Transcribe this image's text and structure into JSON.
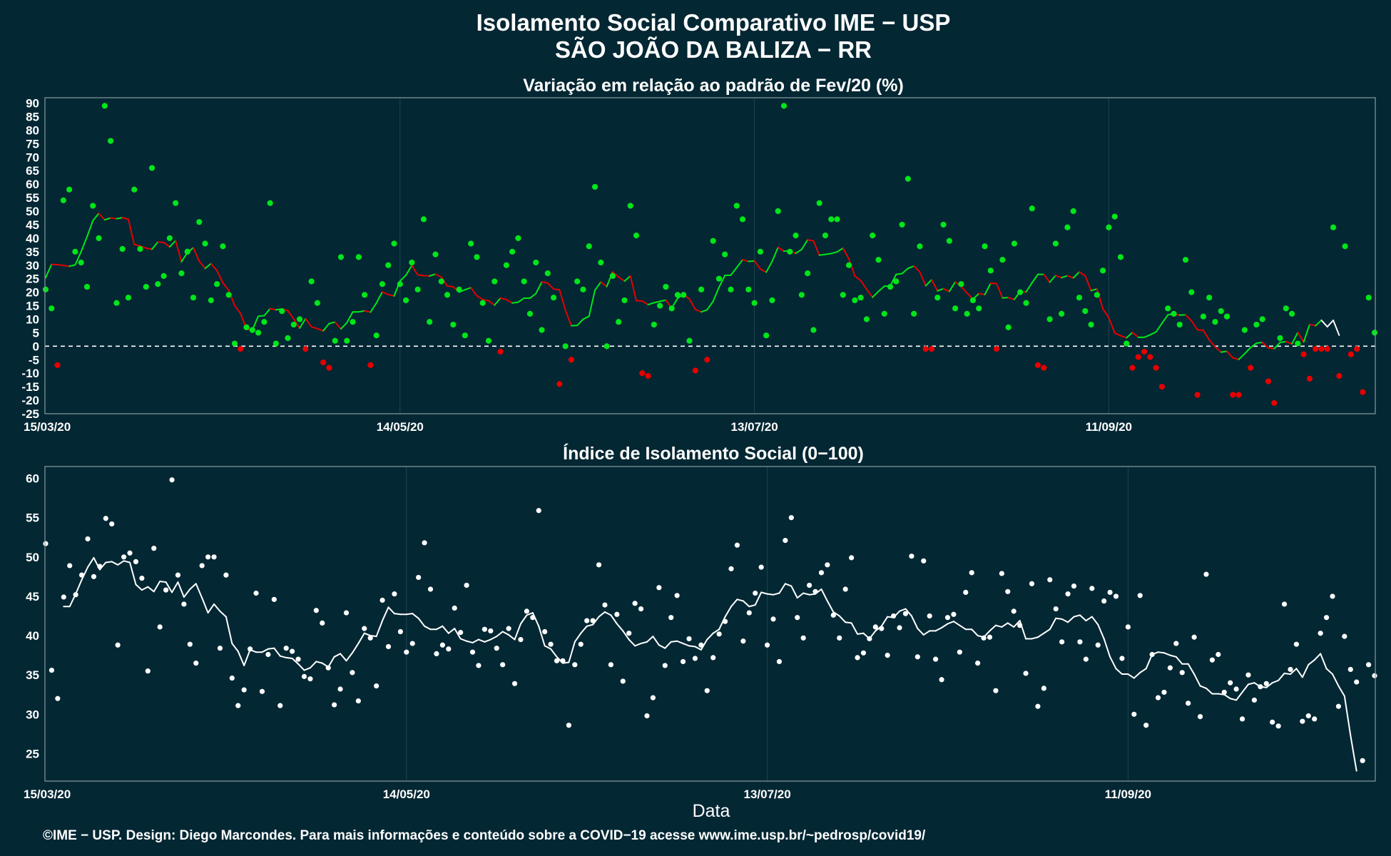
{
  "title_line1": "Isolamento Social Comparativo IME − USP",
  "title_line2": "SÃO JOÃO DA BALIZA − RR",
  "xlabel": "Data",
  "footer": "©IME − USP. Design: Diego Marcondes. Para mais informações e conteúdo sobre a COVID−19 acesse www.ime.usp.br/~pedrosp/covid19/",
  "colors": {
    "background": "#032733",
    "positive": "#00e61a",
    "negative": "#e60000",
    "index": "#ffffff"
  },
  "chart_data": [
    {
      "type": "scatter",
      "title": "Variação em relação ao padrão de Fev/20 (%)",
      "xlabel": "",
      "ylabel": "",
      "x_start": "2020-03-15",
      "x_end": "2020-10-31",
      "x_ticks": [
        "15/03/20",
        "14/05/20",
        "13/07/20",
        "11/09/20"
      ],
      "ylim": [
        -25,
        92
      ],
      "y_ticks": [
        -25,
        -20,
        -15,
        -10,
        -5,
        0,
        5,
        10,
        15,
        20,
        25,
        30,
        35,
        40,
        45,
        50,
        55,
        60,
        65,
        70,
        75,
        80,
        85,
        90
      ],
      "reference_line": 0,
      "grid": true,
      "legend": "none",
      "series": [
        {
          "role": "daily_points",
          "values": [
            21,
            14,
            -7,
            54,
            58,
            35,
            31,
            22,
            52,
            40,
            89,
            76,
            16,
            36,
            18,
            58,
            36,
            22,
            66,
            23,
            26,
            40,
            53,
            27,
            35,
            18,
            46,
            38,
            17,
            23,
            37,
            19,
            1,
            -1,
            7,
            6,
            5,
            9,
            53,
            1,
            13,
            3,
            8,
            10,
            -1,
            24,
            16,
            -6,
            -8,
            2,
            33,
            2,
            9,
            33,
            19,
            -7,
            4,
            23,
            30,
            38,
            23,
            17,
            31,
            21,
            47,
            9,
            34,
            24,
            19,
            8,
            21,
            4,
            38,
            33,
            16,
            2,
            24,
            -2,
            30,
            35,
            40,
            24,
            12,
            31,
            6,
            27,
            18,
            -14,
            0,
            -5,
            24,
            21,
            37,
            59,
            31,
            0,
            26,
            9,
            17,
            52,
            41,
            -10,
            -11,
            8,
            15,
            22,
            14,
            19,
            19,
            2,
            -9,
            21,
            -5,
            39,
            25,
            34,
            21,
            52,
            47,
            21,
            16,
            35,
            4,
            17,
            50,
            89,
            35,
            41,
            19,
            27,
            6,
            53,
            41,
            47,
            47,
            19,
            30,
            17,
            18,
            10,
            41,
            32,
            12,
            22,
            24,
            45,
            62,
            12,
            37,
            -1,
            -1,
            18,
            45,
            39,
            14,
            23,
            12,
            17,
            14,
            37,
            28,
            -1,
            32,
            7,
            38,
            20,
            16,
            51,
            -7,
            -8,
            10,
            38,
            12,
            44,
            50,
            18,
            13,
            8,
            19,
            28,
            44,
            48,
            33,
            1,
            -8,
            -4,
            -2,
            -4,
            -8,
            -15,
            14,
            12,
            8,
            32,
            20,
            -18,
            11,
            18,
            9,
            13,
            11,
            -18,
            -18,
            6,
            -8,
            8,
            10,
            -13,
            -21,
            3,
            14,
            12,
            1,
            -3,
            -12,
            -1,
            -1,
            -1,
            44,
            -11,
            37,
            -3,
            -1,
            -17,
            18,
            5
          ]
        },
        {
          "role": "moving_average",
          "values": [
            25.4,
            30.3,
            30.2,
            29.9,
            29.6,
            30.1,
            35,
            40.5,
            46.5,
            49.2,
            46.8,
            47.5,
            47.2,
            47.6,
            47,
            37.7,
            37.1,
            36.3,
            35.9,
            38.6,
            38.4,
            36.8,
            39.1,
            31.3,
            34.6,
            36.5,
            31.5,
            28.8,
            30.6,
            28,
            23.5,
            20.7,
            15.1,
            12.1,
            6.3,
            6,
            11.1,
            11.3,
            13.9,
            13.5,
            13.8,
            13.2,
            10.1,
            6.7,
            10.2,
            7.2,
            6.5,
            5.7,
            8.4,
            8.9,
            6.4,
            8.7,
            12.7,
            12.7,
            13.1,
            12.6,
            16,
            20.1,
            19.1,
            18.6,
            24.1,
            26.3,
            29.9,
            26.4,
            26.1,
            26,
            26.7,
            25.6,
            22.3,
            22,
            20,
            20.9,
            21.7,
            18.7,
            17.3,
            16.8,
            15.2,
            17.8,
            17.3,
            16,
            16.3,
            17.8,
            17.8,
            19.5,
            23.8,
            23.4,
            21.2,
            20.9,
            13.4,
            7.6,
            7.7,
            10,
            11.1,
            20.7,
            23.8,
            22.1,
            27.5,
            25.6,
            24.1,
            26,
            16.9,
            16.7,
            15.4,
            16.1,
            16.6,
            17.1,
            14.1,
            17.8,
            19.1,
            17.5,
            13.6,
            12.7,
            13.5,
            16.6,
            21.8,
            26.2,
            26.3,
            29.1,
            32,
            31.4,
            31.6,
            28.6,
            27.4,
            31.4,
            36.6,
            35.2,
            35.3,
            34.4,
            35.8,
            39.4,
            39,
            33.7,
            34,
            34.3,
            34.9,
            36.3,
            32.3,
            26,
            24.3,
            21.1,
            18.1,
            20.3,
            22.2,
            22.3,
            26.6,
            26.9,
            28.8,
            29.7,
            27.5,
            22.4,
            24.6,
            20.5,
            21.3,
            20.3,
            23.8,
            22.1,
            19.7,
            17.4,
            19.5,
            19.1,
            23.3,
            23.2,
            17.9,
            18,
            17.3,
            20.3,
            20.1,
            23.5,
            26.6,
            26.6,
            23.7,
            26.2,
            25.4,
            26.1,
            25.3,
            27.5,
            26.1,
            20.6,
            21.2,
            13.8,
            10.6,
            4.9,
            3.9,
            3.1,
            5.1,
            3.3,
            3.3,
            4.2,
            5.3,
            8.5,
            11.6,
            12,
            11.5,
            11.6,
            9.4,
            6.1,
            5.9,
            2.4,
            -0.2,
            -2.2,
            -1.9,
            -4.3,
            -4.9,
            -2.8,
            -0.5,
            1.1,
            1.4,
            -0.6,
            -0.9,
            1.4,
            1.7,
            0.9,
            5.1,
            1.6,
            8.1,
            7.6,
            9.6,
            7.2,
            9.6,
            4.1
          ]
        }
      ]
    },
    {
      "type": "scatter",
      "title": "Índice de Isolamento Social (0−100)",
      "xlabel": "Data",
      "ylabel": "",
      "x_start": "2020-03-15",
      "x_end": "2020-10-31",
      "x_ticks": [
        "15/03/20",
        "14/05/20",
        "13/07/20",
        "11/09/20"
      ],
      "ylim": [
        21.5,
        61.5
      ],
      "y_ticks": [
        25,
        30,
        35,
        40,
        45,
        50,
        55,
        60
      ],
      "grid": true,
      "legend": "none",
      "series": [
        {
          "role": "daily_points",
          "values": [
            51.7,
            35.6,
            32,
            44.9,
            48.9,
            45.2,
            47.7,
            52.3,
            47.5,
            48.8,
            54.9,
            54.2,
            38.8,
            50,
            50.5,
            49.4,
            47.3,
            35.5,
            51.1,
            41.1,
            45.8,
            59.8,
            47.7,
            44,
            38.9,
            36.5,
            48.9,
            50,
            50,
            38.4,
            47.7,
            34.6,
            31.1,
            33.1,
            38.3,
            45.4,
            32.9,
            37.6,
            44.6,
            31.1,
            38.4,
            38,
            37,
            34.8,
            34.5,
            43.2,
            41.6,
            35.9,
            31.2,
            33.2,
            42.9,
            35.3,
            31.7,
            40.9,
            39.7,
            33.6,
            44.5,
            38.6,
            45.3,
            40.5,
            37.9,
            39,
            47.4,
            51.8,
            45.9,
            37.7,
            38.8,
            38.3,
            43.5,
            40.4,
            46.4,
            37.9,
            36.2,
            40.8,
            40.6,
            38.4,
            36.3,
            40.9,
            33.9,
            39.5,
            43.1,
            42.3,
            55.9,
            40.5,
            38.9,
            36.8,
            36.8,
            28.6,
            36.3,
            38.9,
            41.9,
            41.9,
            49,
            43.9,
            36.3,
            42.7,
            34.2,
            40.3,
            44.1,
            43.4,
            29.8,
            32.1,
            46.1,
            36.2,
            42.3,
            45.1,
            36.7,
            39.6,
            37.1,
            38.8,
            33,
            37.2,
            40.2,
            41.8,
            48.5,
            51.5,
            39.3,
            42.9,
            45.4,
            48.7,
            38.8,
            42.1,
            36.7,
            52.1,
            55,
            42.3,
            39.7,
            46.4,
            45.6,
            48,
            49,
            42.6,
            39.7,
            45.9,
            49.9,
            37.2,
            37.8,
            39.6,
            41.1,
            40.9,
            37.5,
            42.5,
            41,
            42.8,
            50.1,
            37.3,
            49.5,
            42.5,
            37,
            34.4,
            42.3,
            42.7,
            37.9,
            45.5,
            48,
            36.5,
            39.7,
            39.8,
            33,
            47.9,
            45.6,
            43.1,
            41.3,
            35.2,
            46.6,
            31,
            33.3,
            47.1,
            43.4,
            39.2,
            45.3,
            46.3,
            39.2,
            37,
            46,
            38.8,
            44.4,
            45.5,
            45,
            37.1,
            41.1,
            30,
            45.1,
            28.6,
            37.6,
            32.1,
            32.8,
            35.9,
            39,
            35.3,
            31.4,
            39.8,
            29.7,
            47.8,
            36.9,
            37.6,
            32.8,
            34,
            33.2,
            29.4,
            35,
            31.8,
            33.5,
            33.9,
            29,
            28.5,
            44,
            35.7,
            38.9,
            29.1,
            29.8,
            29.4,
            40.3,
            42.3,
            45,
            31,
            39.9,
            35.7,
            34.1,
            24.1,
            36.3,
            34.9
          ]
        },
        {
          "role": "moving_average",
          "values": [
            null,
            null,
            null,
            43.7,
            43.7,
            45.3,
            47.1,
            48.7,
            49.9,
            48.4,
            49.3,
            49.4,
            49,
            49.5,
            49.3,
            46.5,
            45.8,
            46.2,
            45.6,
            46.9,
            46.8,
            45.5,
            46.8,
            44.9,
            45.9,
            46.6,
            44.8,
            42.9,
            44,
            43.1,
            42.4,
            39,
            38,
            36.2,
            38.2,
            37.9,
            37.9,
            38.3,
            38.4,
            37.4,
            37.2,
            37.1,
            36.4,
            35.6,
            35.9,
            36.7,
            36.5,
            36,
            37.3,
            37.7,
            36.8,
            37.8,
            39,
            40.3,
            40,
            39.9,
            41.9,
            43.6,
            42.8,
            42.7,
            42.7,
            42.8,
            42.2,
            41.2,
            40.8,
            40.8,
            41.2,
            40.3,
            40.9,
            39.6,
            39.3,
            39.1,
            39.5,
            39.2,
            39.5,
            39.9,
            40.5,
            40.1,
            39.5,
            41.5,
            42.6,
            42.9,
            41.2,
            38.7,
            38.3,
            37.3,
            36.5,
            36.6,
            39.2,
            40.3,
            41.2,
            41.4,
            42.4,
            43,
            42.6,
            41.5,
            40.6,
            39.5,
            38.7,
            39,
            39.2,
            39.9,
            38.8,
            38.4,
            39.2,
            39.3,
            39,
            38.7,
            38.6,
            38.2,
            39.5,
            40.3,
            40.8,
            42.4,
            43.7,
            44.6,
            44.4,
            43.7,
            43.9,
            45.5,
            45.3,
            45.2,
            45.4,
            46.6,
            46.3,
            44.8,
            45.4,
            45.2,
            45.3,
            45.9,
            44.4,
            43,
            42.5,
            41.7,
            41.6,
            40.2,
            40.3,
            39.6,
            40.6,
            41.2,
            42.4,
            42.3,
            43.1,
            43.4,
            42.5,
            40.9,
            40.1,
            40.6,
            40.6,
            41,
            41.5,
            41.8,
            41.3,
            40.8,
            40.8,
            40,
            39.8,
            40.6,
            41.3,
            41.1,
            41.6,
            41.1,
            41.9,
            39.6,
            39.6,
            39.8,
            40.3,
            40.8,
            42.2,
            42.1,
            41.7,
            42.4,
            42.6,
            41.9,
            42.4,
            41.4,
            39.6,
            37.3,
            35.8,
            35.1,
            35.1,
            34.6,
            35.3,
            35.8,
            37.6,
            37.9,
            37.8,
            37.5,
            37.3,
            36.4,
            36.4,
            35.1,
            33.6,
            33.3,
            32.6,
            32.6,
            32.5,
            32,
            31.8,
            32.8,
            33.8,
            34,
            33.5,
            33.4,
            34,
            34.3,
            35.2,
            35.1,
            35.8,
            34.7,
            36.3,
            36.9,
            37.7,
            35.8,
            35.1,
            33.6,
            32.3,
            27.3,
            22.8
          ]
        }
      ]
    }
  ]
}
